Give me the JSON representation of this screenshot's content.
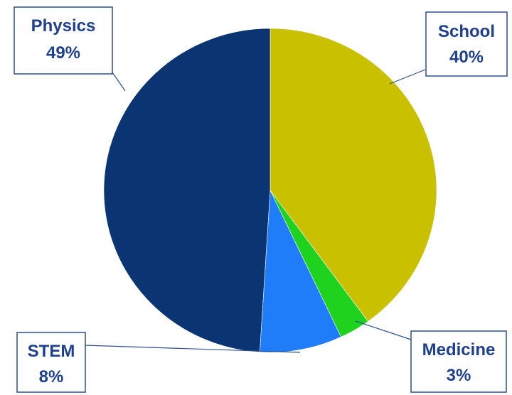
{
  "chart_data": {
    "type": "pie",
    "title": "",
    "slices": [
      {
        "label": "School",
        "value": 40,
        "value_text": "40%",
        "color": "#c9c000"
      },
      {
        "label": "Medicine",
        "value": 3,
        "value_text": "3%",
        "color": "#1ed21e"
      },
      {
        "label": "STEM",
        "value": 8,
        "value_text": "8%",
        "color": "#1f7dfa"
      },
      {
        "label": "Physics",
        "value": 49,
        "value_text": "49%",
        "color": "#0b3572"
      }
    ],
    "legend": "none"
  }
}
